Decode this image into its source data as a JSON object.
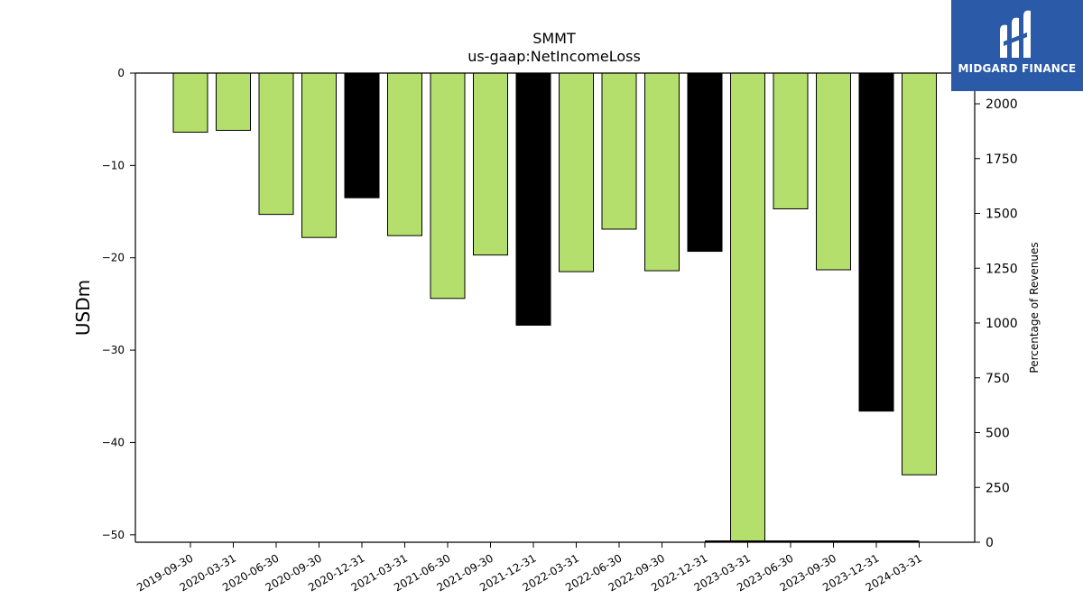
{
  "chart_data": {
    "type": "bar",
    "title": "SMMT",
    "subtitle": "us-gaap:NetIncomeLoss",
    "ylabel": "USDm",
    "y2label": "Percentage of Revenues",
    "ylim": [
      -50.8,
      0
    ],
    "y2lim": [
      0,
      2140
    ],
    "yticks": [
      0,
      -10,
      -20,
      -30,
      -40,
      -50
    ],
    "y2ticks": [
      0,
      250,
      500,
      750,
      1000,
      1250,
      1500,
      1750,
      2000
    ],
    "categories": [
      "2019-09-30",
      "2020-03-31",
      "2020-06-30",
      "2020-09-30",
      "2020-12-31",
      "2021-03-31",
      "2021-06-30",
      "2021-09-30",
      "2021-12-31",
      "2022-03-31",
      "2022-06-30",
      "2022-09-30",
      "2022-12-31",
      "2023-03-31",
      "2023-06-30",
      "2023-09-30",
      "2023-12-31",
      "2024-03-31"
    ],
    "values": [
      -6.4,
      -6.2,
      -15.3,
      -17.8,
      -13.5,
      -17.6,
      -24.4,
      -19.7,
      -27.3,
      -21.5,
      -16.9,
      -21.4,
      -19.3,
      -50.8,
      -14.7,
      -21.3,
      -36.6,
      -43.5
    ],
    "annual": [
      false,
      false,
      false,
      false,
      true,
      false,
      false,
      false,
      true,
      false,
      false,
      false,
      true,
      false,
      false,
      false,
      true,
      false
    ],
    "pct_revenue": [
      null,
      null,
      null,
      null,
      null,
      null,
      null,
      null,
      null,
      null,
      null,
      null,
      5,
      5,
      5,
      5,
      5,
      5
    ],
    "colors": {
      "quarter": "#b5df6c",
      "annual": "#000000"
    }
  },
  "logo": {
    "text": "MIDGARD FINANCE",
    "mark": "midgard-logo-mark"
  }
}
